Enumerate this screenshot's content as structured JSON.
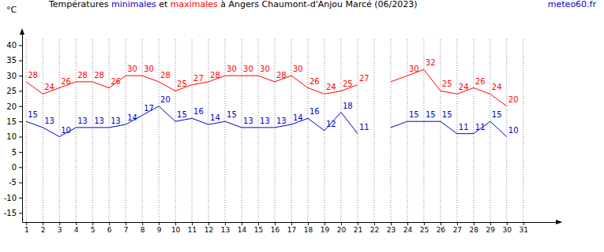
{
  "chart_data": {
    "type": "line",
    "title": "Températures minimales et maximales à Angers Chaumont-d'Anjou Marcé (06/2023)",
    "source": "meteo60.fr",
    "y_label": "°C",
    "x": [
      1,
      2,
      3,
      4,
      5,
      6,
      7,
      8,
      9,
      10,
      11,
      12,
      13,
      14,
      15,
      16,
      17,
      18,
      19,
      20,
      21,
      22,
      23,
      24,
      25,
      26,
      27,
      28,
      29,
      30,
      31
    ],
    "series": [
      {
        "name": "minimales",
        "color": "#0000cc",
        "values": [
          15,
          13,
          10,
          13,
          13,
          13,
          14,
          17,
          20,
          15,
          16,
          14,
          15,
          13,
          13,
          13,
          14,
          16,
          12,
          18,
          11,
          null,
          13,
          15,
          15,
          15,
          11,
          11,
          15,
          10,
          null
        ],
        "value_labels": [
          "15",
          "13",
          "10",
          "13",
          "13",
          "13",
          "14",
          "17",
          "20",
          "15",
          "16",
          "14",
          "15",
          "13",
          "13",
          "13",
          "14",
          "16",
          "12",
          "18",
          "11",
          null,
          null,
          "15",
          "15",
          "15",
          "11",
          "11",
          "15",
          "10",
          null
        ]
      },
      {
        "name": "maximales",
        "color": "#ff0000",
        "values": [
          28,
          24,
          26,
          28,
          28,
          26,
          30,
          30,
          28,
          25,
          27,
          28,
          30,
          30,
          30,
          28,
          30,
          26,
          24,
          25,
          27,
          null,
          28,
          30,
          32,
          25,
          24,
          26,
          24,
          20,
          null
        ],
        "value_labels": [
          "28",
          "24",
          "26",
          "28",
          "28",
          "26",
          "30",
          "30",
          "28",
          "25",
          "27",
          "28",
          "30",
          "30",
          "30",
          "28",
          "30",
          "26",
          "24",
          "25",
          "27",
          null,
          null,
          "30",
          "32",
          "25",
          "24",
          "26",
          "24",
          "20",
          null
        ]
      }
    ],
    "xlim": [
      0.75,
      33.25
    ],
    "ylim": [
      -18,
      45
    ],
    "xticks": [
      1,
      2,
      3,
      4,
      5,
      6,
      7,
      8,
      9,
      10,
      11,
      12,
      13,
      14,
      15,
      16,
      17,
      18,
      19,
      20,
      21,
      22,
      23,
      24,
      25,
      26,
      27,
      28,
      29,
      30,
      31
    ],
    "yticks": [
      -15,
      -10,
      -5,
      0,
      5,
      10,
      15,
      20,
      25,
      30,
      35,
      40
    ],
    "grid": true,
    "data_labels": true
  }
}
